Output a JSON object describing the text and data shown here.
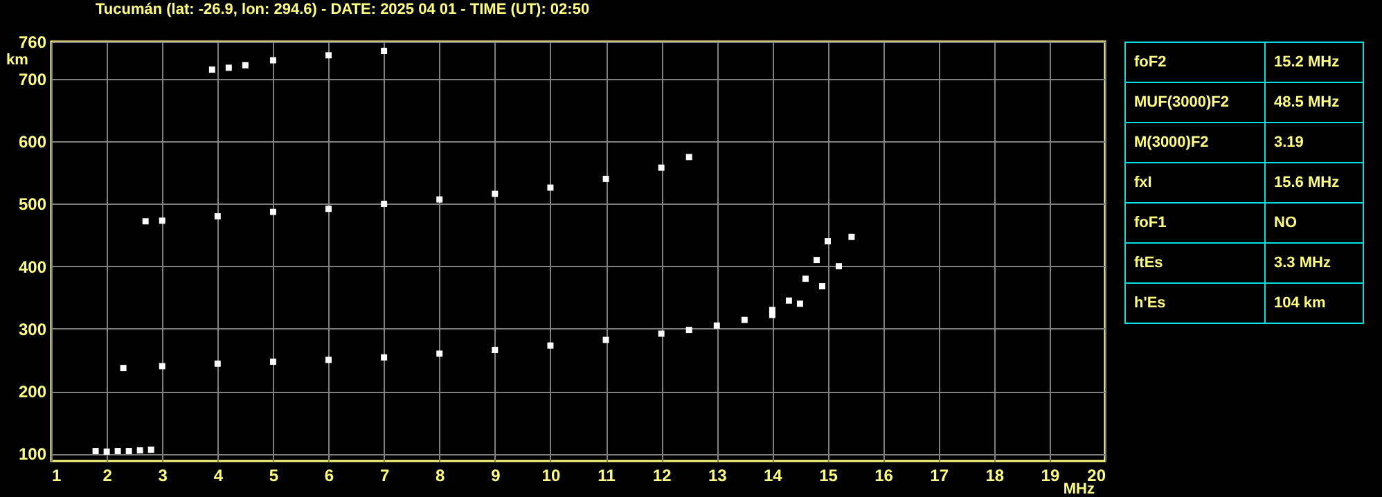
{
  "chart_data": [
    {
      "type": "scatter",
      "title": "Tucumán (lat: -26.9, lon: 294.6) - DATE: 2025 04 01 - TIME (UT): 02:50",
      "xlabel": "MHz",
      "ylabel": "km",
      "xlim": [
        1,
        20
      ],
      "ylim": [
        88,
        760
      ],
      "xticks": [
        1,
        2,
        3,
        4,
        5,
        6,
        7,
        8,
        9,
        10,
        11,
        12,
        13,
        14,
        15,
        16,
        17,
        18,
        19,
        20
      ],
      "yticks": [
        100,
        200,
        300,
        400,
        500,
        600,
        700,
        760
      ],
      "grid": true,
      "marker": "square",
      "series": [
        {
          "color": "#ffffff",
          "x": [
            1.8,
            2.0,
            2.2,
            2.4,
            2.6,
            2.8
          ],
          "values": [
            104,
            103,
            104,
            104,
            105,
            106
          ]
        },
        {
          "color": "#ffffff",
          "x": [
            2.3,
            3,
            4,
            5,
            6,
            7,
            8,
            9,
            10,
            11,
            12,
            12.5,
            13,
            13.5,
            14,
            14.3,
            14.6,
            14.8,
            15.0
          ],
          "values": [
            237,
            240,
            244,
            247,
            250,
            254,
            260,
            266,
            273,
            282,
            292,
            298,
            305,
            314,
            330,
            345,
            380,
            410,
            440
          ]
        },
        {
          "color": "#ffffff",
          "x": [
            14.0,
            14.5,
            14.9,
            15.2,
            15.43
          ],
          "values": [
            322,
            340,
            368,
            400,
            447
          ]
        },
        {
          "color": "#ffffff",
          "x": [
            2.7,
            3,
            4,
            5,
            6,
            7,
            8,
            9,
            10,
            11,
            12,
            12.5
          ],
          "values": [
            472,
            473,
            480,
            487,
            492,
            500,
            507,
            516,
            526,
            540,
            558,
            575
          ]
        },
        {
          "color": "#ffffff",
          "x": [
            3.9,
            4.2,
            4.5,
            5,
            6,
            7
          ],
          "values": [
            715,
            718,
            722,
            730,
            738,
            745
          ]
        }
      ]
    },
    {
      "type": "other",
      "annotations": [
        "foF2",
        "15.2 MHz",
        "MUF(3000)F2",
        "48.5 MHz",
        "M(3000)F2",
        "3.19",
        "fxI",
        "15.6 MHz",
        "foF1",
        "NO",
        "ftEs",
        "3.3 MHz",
        "h'Es",
        "104 km"
      ]
    }
  ]
}
